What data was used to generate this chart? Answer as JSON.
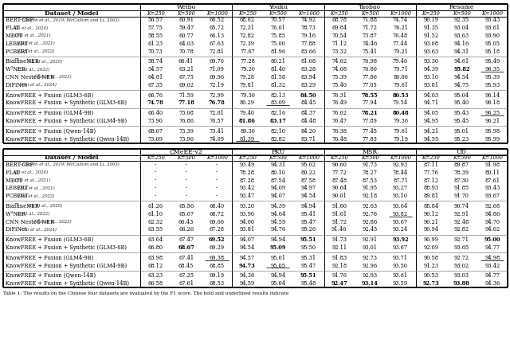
{
  "top_header_groups": [
    "Weibo",
    "Youku",
    "Taobao",
    "Resume"
  ],
  "bot_header_groups": [
    "CMeEE-v2",
    "PKU",
    "MSR",
    "UD"
  ],
  "sub_headers": [
    "K=250",
    "K=500",
    "K=1000"
  ],
  "col1_label": "Dataset / Model",
  "top_rows": [
    {
      "name": "BERT-CRF",
      "cite": "(Devlin et al., 2019; McCallum and Li, 2003)",
      "group": 1,
      "vals": [
        56.57,
        60.91,
        66.52,
        68.02,
        70.57,
        74.92,
        68.78,
        71.88,
        74.74,
        90.19,
        92.35,
        93.43
      ],
      "bold": [],
      "underline": []
    },
    {
      "name": "FLAT",
      "cite": "(Li et al., 2020)",
      "group": 1,
      "vals": [
        57.75,
        59.47,
        65.72,
        72.31,
        76.01,
        78.73,
        69.84,
        71.72,
        76.21,
        91.35,
        93.04,
        93.61
      ],
      "bold": [],
      "underline": []
    },
    {
      "name": "MECT",
      "cite": "(Wu et al., 2021)",
      "group": 1,
      "vals": [
        58.55,
        60.77,
        66.13,
        72.82,
        75.85,
        79.16,
        70.54,
        73.87,
        76.48,
        91.52,
        93.63,
        93.9
      ],
      "bold": [],
      "underline": []
    },
    {
      "name": "LEBERT",
      "cite": "(Liu et al., 2021)",
      "group": 1,
      "vals": [
        61.23,
        64.03,
        67.63,
        72.39,
        75.0,
        77.88,
        71.12,
        74.46,
        77.44,
        93.08,
        94.16,
        95.05
      ],
      "bold": [],
      "underline": []
    },
    {
      "name": "PCBERT",
      "cite": "(Lai et al., 2022)",
      "group": 1,
      "vals": [
        70.73,
        70.78,
        72.81,
        77.67,
        81.96,
        83.66,
        73.32,
        75.41,
        79.21,
        93.63,
        94.31,
        95.18
      ],
      "bold": [],
      "underline": []
    },
    {
      "name": "BiaffineNER",
      "cite": "(Yu et al., 2020)",
      "group": 2,
      "vals": [
        58.74,
        66.41,
        69.7,
        77.28,
        80.21,
        81.68,
        74.62,
        76.98,
        79.46,
        93.3,
        94.61,
        95.49
      ],
      "bold": [],
      "underline": []
    },
    {
      "name": "W²NER",
      "cite": "(Li et al., 2022)",
      "group": 2,
      "vals": [
        54.57,
        63.21,
        71.09,
        79.2,
        81.4,
        83.28,
        74.68,
        76.8,
        79.71,
        94.39,
        95.82,
        96.35
      ],
      "bold": [
        10
      ],
      "underline": [
        11
      ]
    },
    {
      "name": "CNN Nested NER",
      "cite": "(Yan et al., 2023)",
      "group": 2,
      "vals": [
        64.81,
        67.75,
        69.96,
        79.28,
        81.58,
        83.94,
        75.39,
        77.86,
        80.06,
        93.1,
        94.54,
        95.39
      ],
      "bold": [],
      "underline": []
    },
    {
      "name": "DiFiNet",
      "cite": "(Cai et al., 2024)",
      "group": 2,
      "vals": [
        67.35,
        69.02,
        72.19,
        79.81,
        81.32,
        83.29,
        75.4,
        77.05,
        79.61,
        93.81,
        94.75,
        95.93
      ],
      "bold": [],
      "underline": []
    },
    {
      "name": "KnowFREE + Fusion (GLM3-6B)",
      "cite": "",
      "group": 3,
      "vals": [
        66.76,
        71.59,
        72.99,
        79.3,
        82.13,
        84.5,
        76.31,
        78.55,
        80.53,
        94.03,
        95.04,
        96.14
      ],
      "bold": [
        5,
        7,
        8
      ],
      "underline": []
    },
    {
      "name": "KnowFREE + Fusion + Synthetic (GLM3-6B)",
      "cite": "",
      "group": 3,
      "vals": [
        74.78,
        77.18,
        76.78,
        80.29,
        83.09,
        84.45,
        76.49,
        77.94,
        79.54,
        94.71,
        95.4,
        96.18
      ],
      "bold": [
        0,
        1,
        2
      ],
      "underline": [
        4
      ]
    },
    {
      "name": "KnowFREE + Fusion (GLM4-9B)",
      "cite": "",
      "group": 4,
      "vals": [
        66.4,
        73.08,
        72.01,
        79.4,
        82.16,
        84.37,
        76.02,
        78.21,
        80.48,
        94.05,
        95.43,
        96.25
      ],
      "bold": [
        7,
        8
      ],
      "underline": [
        11
      ]
    },
    {
      "name": "KnowFREE + Fusion + Synthetic (GLM4-9B)",
      "cite": "",
      "group": 4,
      "vals": [
        73.9,
        76.86,
        76.57,
        81.86,
        83.17,
        84.48,
        76.47,
        77.89,
        79.36,
        94.95,
        95.45,
        96.21
      ],
      "bold": [
        3,
        4
      ],
      "underline": []
    },
    {
      "name": "KnowFREE + Fusion (Qwen-14B)",
      "cite": "",
      "group": 5,
      "vals": [
        68.07,
        73.39,
        73.41,
        80.3,
        82.1,
        84.2,
        76.38,
        77.45,
        79.61,
        94.21,
        95.01,
        95.98
      ],
      "bold": [],
      "underline": []
    },
    {
      "name": "KnowFREE + Fusion + Synthetic (Qwen-14B)",
      "cite": "",
      "group": 5,
      "vals": [
        73.09,
        73.96,
        74.09,
        81.39,
        82.82,
        83.71,
        76.48,
        77.83,
        79.19,
        94.55,
        95.23,
        95.99
      ],
      "bold": [],
      "underline": [
        3
      ]
    }
  ],
  "bot_rows": [
    {
      "name": "BERT-CRF",
      "cite": "(Devlin et al., 2019; McCallum and Li, 2003)",
      "group": 1,
      "vals": [
        null,
        null,
        null,
        93.49,
        94.31,
        95.02,
        90.6,
        91.73,
        92.93,
        87.11,
        89.87,
        91.98
      ],
      "bold": [],
      "underline": []
    },
    {
      "name": "FLAT",
      "cite": "(Li et al., 2020)",
      "group": 1,
      "vals": [
        null,
        null,
        null,
        78.28,
        80.1,
        80.22,
        77.72,
        78.27,
        78.44,
        77.76,
        78.39,
        80.11
      ],
      "bold": [],
      "underline": []
    },
    {
      "name": "MECT",
      "cite": "(Wu et al., 2021)",
      "group": 1,
      "vals": [
        null,
        null,
        null,
        87.28,
        87.54,
        87.58,
        87.48,
        87.53,
        87.71,
        87.12,
        87.3,
        87.61
      ],
      "bold": [],
      "underline": []
    },
    {
      "name": "LEBERT",
      "cite": "(Liu et al., 2021)",
      "group": 1,
      "vals": [
        null,
        null,
        null,
        93.42,
        94.09,
        94.97,
        90.64,
        91.95,
        93.27,
        88.93,
        91.85,
        93.43
      ],
      "bold": [],
      "underline": []
    },
    {
      "name": "PCBERT",
      "cite": "(Lai et al., 2022)",
      "group": 1,
      "vals": [
        null,
        null,
        null,
        93.47,
        94.07,
        94.54,
        90.01,
        92.18,
        93.1,
        89.81,
        91.7,
        93.67
      ],
      "bold": [],
      "underline": []
    },
    {
      "name": "BiaffineNER",
      "cite": "(Yu et al., 2020)",
      "group": 2,
      "vals": [
        61.26,
        65.56,
        68.4,
        93.2,
        94.39,
        94.94,
        91.6,
        92.63,
        93.64,
        88.84,
        90.74,
        92.68
      ],
      "bold": [],
      "underline": []
    },
    {
      "name": "W²NER",
      "cite": "(Li et al., 2022)",
      "group": 2,
      "vals": [
        61.1,
        65.67,
        68.72,
        93.9,
        94.64,
        95.41,
        91.61,
        92.76,
        93.82,
        90.12,
        92.91,
        94.86
      ],
      "bold": [],
      "underline": [
        8
      ]
    },
    {
      "name": "CNN Nested NER",
      "cite": "(Yan et al., 2023)",
      "group": 2,
      "vals": [
        62.32,
        66.43,
        69.06,
        94.0,
        94.59,
        95.47,
        91.72,
        92.86,
        93.67,
        90.21,
        92.48,
        94.7
      ],
      "bold": [],
      "underline": []
    },
    {
      "name": "DiFiNet",
      "cite": "(Cai et al., 2024)",
      "group": 2,
      "vals": [
        63.55,
        66.26,
        67.28,
        93.81,
        94.76,
        95.26,
        91.46,
        92.45,
        93.24,
        90.94,
        92.82,
        94.62
      ],
      "bold": [],
      "underline": []
    },
    {
      "name": "KnowFREE + Fusion (GLM3-6B)",
      "cite": "",
      "group": 3,
      "vals": [
        63.64,
        67.47,
        69.52,
        94.07,
        94.94,
        95.51,
        91.73,
        92.91,
        93.92,
        90.99,
        92.71,
        95.0
      ],
      "bold": [
        2,
        5,
        8,
        11
      ],
      "underline": []
    },
    {
      "name": "KnowFREE + Fusion + Synthetic (GLM3-6B)",
      "cite": "",
      "group": 3,
      "vals": [
        66.8,
        68.67,
        69.29,
        94.54,
        95.09,
        95.5,
        92.11,
        93.01,
        93.67,
        92.09,
        93.65,
        94.77
      ],
      "bold": [
        1,
        4
      ],
      "underline": []
    },
    {
      "name": "KnowFREE + Fusion (GLM4-9B)",
      "cite": "",
      "group": 4,
      "vals": [
        63.98,
        67.41,
        69.38,
        94.57,
        95.01,
        95.31,
        91.83,
        92.73,
        93.71,
        90.58,
        92.72,
        94.98
      ],
      "bold": [],
      "underline": [
        2,
        11
      ]
    },
    {
      "name": "KnowFREE + Fusion + Synthetic (GLM4-9B)",
      "cite": "",
      "group": 4,
      "vals": [
        68.12,
        68.45,
        68.85,
        94.73,
        95.05,
        95.47,
        92.18,
        92.96,
        93.5,
        91.23,
        93.02,
        93.42
      ],
      "bold": [
        3
      ],
      "underline": [
        4
      ]
    },
    {
      "name": "KnowFREE + Fusion (Qwen-14B)",
      "cite": "",
      "group": 5,
      "vals": [
        63.23,
        67.25,
        69.19,
        94.36,
        94.94,
        95.51,
        91.76,
        92.93,
        93.61,
        90.53,
        93.03,
        94.77
      ],
      "bold": [
        5
      ],
      "underline": []
    },
    {
      "name": "KnowFREE + Fusion + Synthetic (Qwen-14B)",
      "cite": "",
      "group": 5,
      "vals": [
        66.58,
        67.61,
        68.53,
        94.59,
        95.04,
        95.48,
        92.47,
        93.14,
        93.59,
        92.73,
        93.88,
        94.36
      ],
      "bold": [
        6,
        7,
        9,
        10
      ],
      "underline": []
    }
  ],
  "caption": "Table 1: The results on the Chinese four datasets are evaluated by the F1 score. The bold and underlined results indicate"
}
